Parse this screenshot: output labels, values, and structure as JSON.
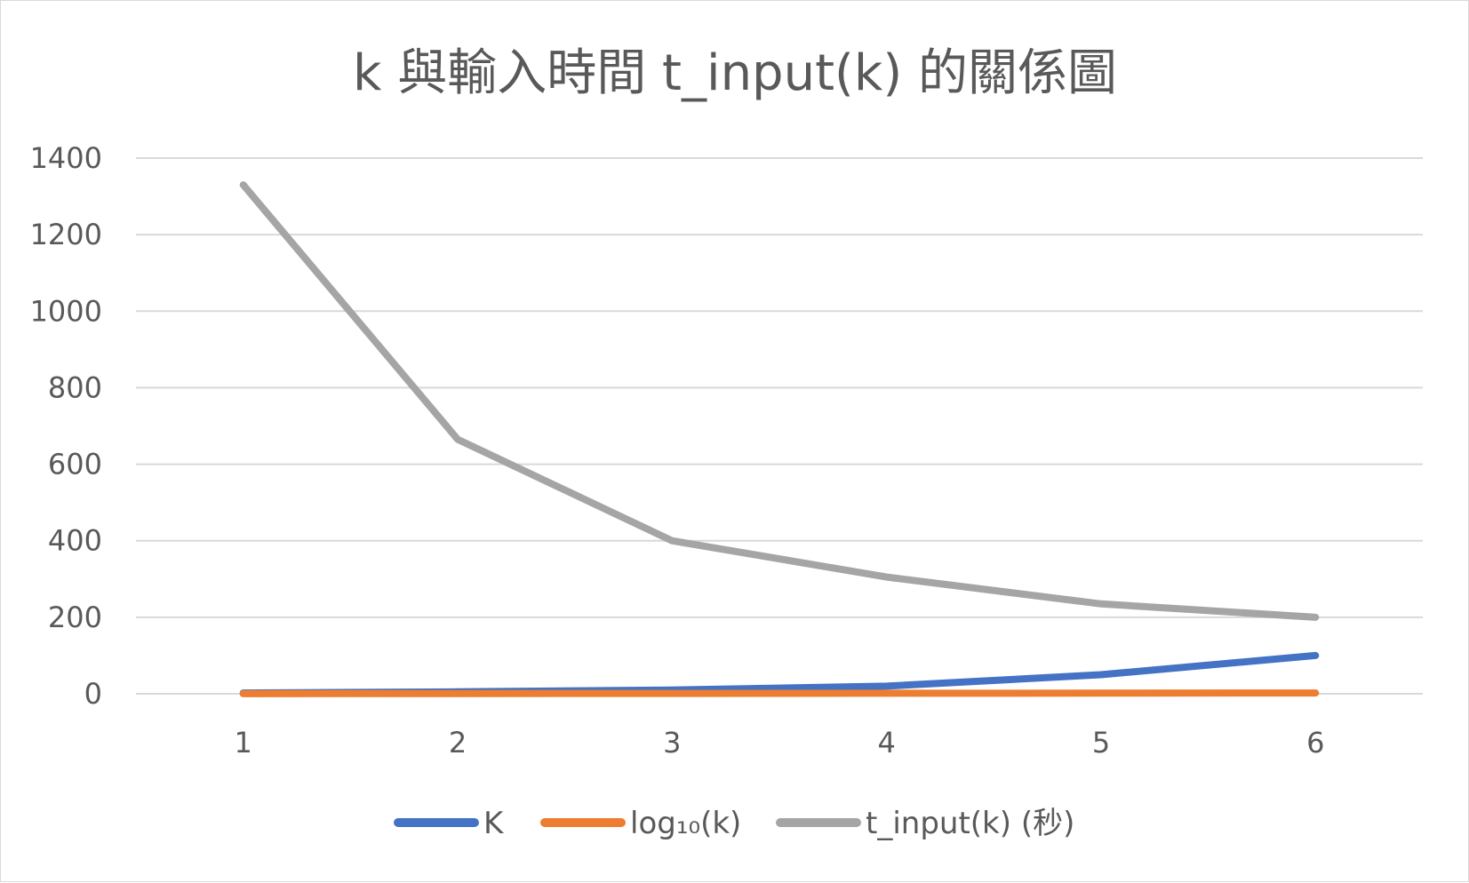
{
  "chart_data": {
    "type": "line",
    "title": "k 與輸入時間 t_input(k) 的關係圖",
    "xlabel": "",
    "ylabel": "",
    "x": [
      1,
      2,
      3,
      4,
      5,
      6
    ],
    "x_tick_labels": [
      "1",
      "2",
      "3",
      "4",
      "5",
      "6"
    ],
    "ylim": [
      0,
      1400
    ],
    "y_ticks": [
      0,
      200,
      400,
      600,
      800,
      1000,
      1200,
      1400
    ],
    "y_tick_labels": [
      "0",
      "200",
      "400",
      "600",
      "800",
      "1000",
      "1200",
      "1400"
    ],
    "grid": true,
    "legend_position": "bottom",
    "series": [
      {
        "name": "K",
        "color": "#4472c4",
        "values": [
          2,
          5,
          10,
          20,
          50,
          100
        ]
      },
      {
        "name": "log₁₀(k)",
        "color": "#ed7d31",
        "values": [
          0.3,
          0.7,
          1,
          1.3,
          1.7,
          2
        ]
      },
      {
        "name": "t_input(k) (秒)",
        "color": "#a5a5a5",
        "values": [
          1330,
          665,
          400,
          305,
          235,
          200
        ]
      }
    ]
  }
}
